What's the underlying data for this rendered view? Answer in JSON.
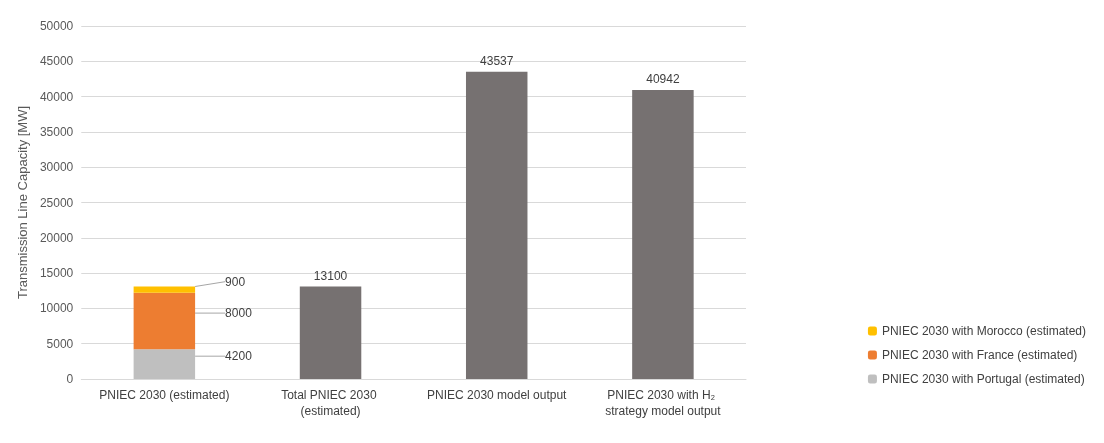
{
  "chart_data": {
    "type": "bar",
    "stacked": true,
    "ylabel": "Transmission Line Capacity [MW]",
    "categories": [
      "PNIEC 2030 (estimated)",
      "Total PNIEC 2030 (estimated)",
      "PNIEC 2030 model output",
      "PNIEC 2030 with H₂ strategy model output"
    ],
    "series": [
      {
        "name": "PNIEC 2030 with Portugal (estimated)",
        "color": "#bfbfbf",
        "values": [
          4200,
          null,
          null,
          null
        ]
      },
      {
        "name": "PNIEC 2030 with France (estimated)",
        "color": "#ed7d31",
        "values": [
          8000,
          null,
          null,
          null
        ]
      },
      {
        "name": "PNIEC 2030 with Morocco (estimated)",
        "color": "#ffc000",
        "values": [
          900,
          null,
          null,
          null
        ]
      },
      {
        "color": "#767171",
        "values": [
          null,
          13100,
          43537,
          40942
        ]
      }
    ],
    "ylim": [
      0,
      50000
    ],
    "yticks": [
      0,
      5000,
      10000,
      15000,
      20000,
      25000,
      30000,
      35000,
      40000,
      45000,
      50000
    ],
    "grid": "y",
    "legend": "right",
    "data_labels": true
  }
}
